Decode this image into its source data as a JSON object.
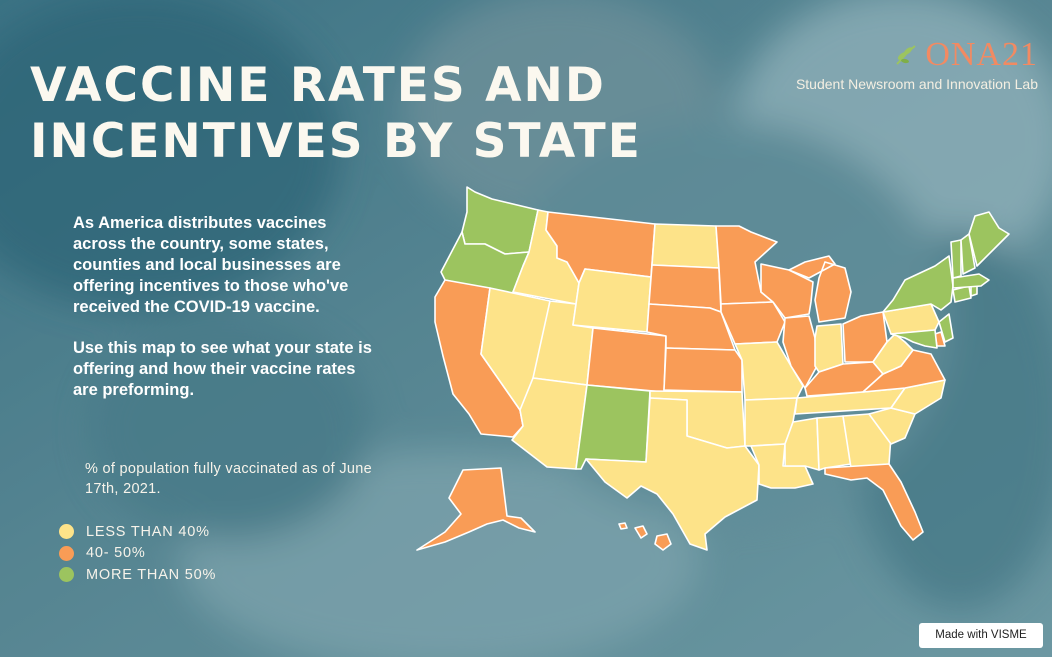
{
  "header": {
    "title_line1": "VACCINE RATES AND",
    "title_line2": "INCENTIVES BY STATE"
  },
  "brand": {
    "logo_text": "ONA21",
    "subtitle": "Student Newsroom and Innovation Lab",
    "leaf_icon": "laurel-leaf-icon"
  },
  "intro": {
    "paragraph1": "As America distributes vaccines across the country, some states, counties and local businesses are offering incentives to those who've received the COVID-19 vaccine.",
    "paragraph2": "Use this map to see what your state is offering and how their vaccine rates are preforming."
  },
  "legend": {
    "title": "% of population fully vaccinated as of June 17th, 2021.",
    "items": [
      {
        "label": "LESS THAN 40%",
        "color": "#fde389"
      },
      {
        "label": "40- 50%",
        "color": "#f99c56"
      },
      {
        "label": "MORE THAN 50%",
        "color": "#9cc45f"
      }
    ]
  },
  "map": {
    "category_colors": {
      "low": "#fde389",
      "mid": "#f99c56",
      "high": "#9cc45f"
    },
    "states": [
      {
        "code": "WA",
        "category": "high"
      },
      {
        "code": "OR",
        "category": "high"
      },
      {
        "code": "CA",
        "category": "mid"
      },
      {
        "code": "ID",
        "category": "low"
      },
      {
        "code": "NV",
        "category": "low"
      },
      {
        "code": "UT",
        "category": "low"
      },
      {
        "code": "AZ",
        "category": "low"
      },
      {
        "code": "MT",
        "category": "mid"
      },
      {
        "code": "WY",
        "category": "low"
      },
      {
        "code": "CO",
        "category": "mid"
      },
      {
        "code": "NM",
        "category": "high"
      },
      {
        "code": "ND",
        "category": "low"
      },
      {
        "code": "SD",
        "category": "mid"
      },
      {
        "code": "NE",
        "category": "mid"
      },
      {
        "code": "KS",
        "category": "mid"
      },
      {
        "code": "OK",
        "category": "low"
      },
      {
        "code": "TX",
        "category": "low"
      },
      {
        "code": "MN",
        "category": "mid"
      },
      {
        "code": "IA",
        "category": "mid"
      },
      {
        "code": "MO",
        "category": "low"
      },
      {
        "code": "AR",
        "category": "low"
      },
      {
        "code": "LA",
        "category": "low"
      },
      {
        "code": "WI",
        "category": "mid"
      },
      {
        "code": "IL",
        "category": "mid"
      },
      {
        "code": "MI",
        "category": "mid"
      },
      {
        "code": "IN",
        "category": "low"
      },
      {
        "code": "OH",
        "category": "mid"
      },
      {
        "code": "KY",
        "category": "mid"
      },
      {
        "code": "TN",
        "category": "low"
      },
      {
        "code": "MS",
        "category": "low"
      },
      {
        "code": "AL",
        "category": "low"
      },
      {
        "code": "GA",
        "category": "low"
      },
      {
        "code": "FL",
        "category": "mid"
      },
      {
        "code": "SC",
        "category": "low"
      },
      {
        "code": "NC",
        "category": "low"
      },
      {
        "code": "VA",
        "category": "mid"
      },
      {
        "code": "WV",
        "category": "low"
      },
      {
        "code": "PA",
        "category": "low"
      },
      {
        "code": "NY",
        "category": "high"
      },
      {
        "code": "NJ",
        "category": "high"
      },
      {
        "code": "DE",
        "category": "mid"
      },
      {
        "code": "MD",
        "category": "high"
      },
      {
        "code": "CT",
        "category": "high"
      },
      {
        "code": "RI",
        "category": "high"
      },
      {
        "code": "MA",
        "category": "high"
      },
      {
        "code": "VT",
        "category": "high"
      },
      {
        "code": "NH",
        "category": "high"
      },
      {
        "code": "ME",
        "category": "high"
      },
      {
        "code": "AK",
        "category": "mid"
      },
      {
        "code": "HI",
        "category": "mid"
      }
    ]
  },
  "footer": {
    "credit": "Made with VISME"
  }
}
